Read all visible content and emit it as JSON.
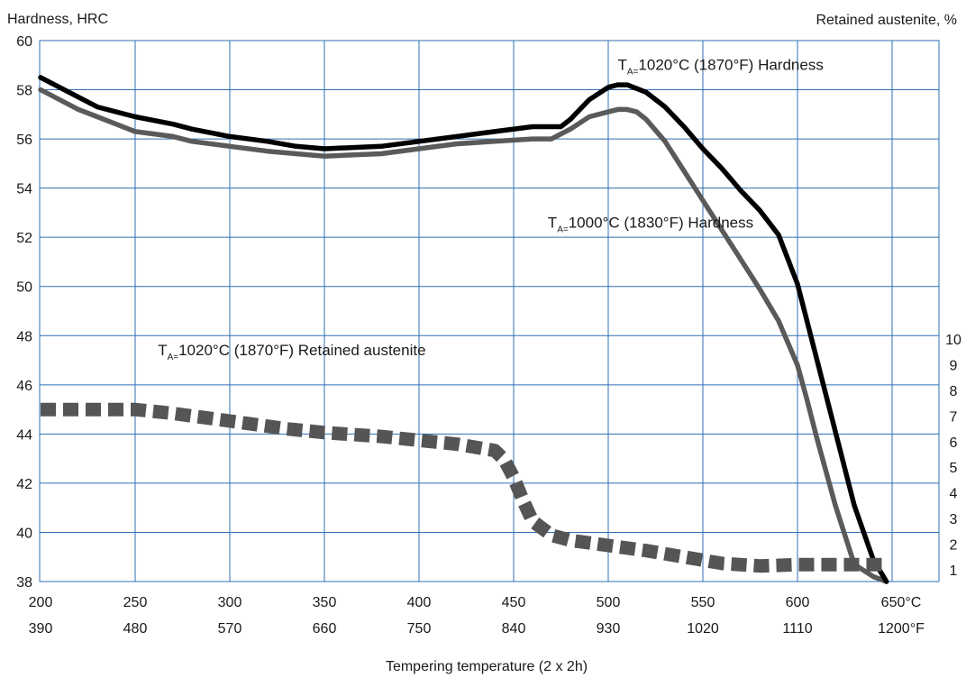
{
  "chart_data": {
    "type": "line",
    "left_axis_title": "Hardness, HRC",
    "right_axis_title": "Retained austenite,  %",
    "xlabel": "Tempering temperature  (2 x 2h)",
    "x_ticks_c": [
      200,
      250,
      300,
      350,
      400,
      450,
      500,
      550,
      600,
      650
    ],
    "x_tick_labels_c": [
      "200",
      "250",
      "300",
      "350",
      "400",
      "450",
      "500",
      "550",
      "600",
      "650°C"
    ],
    "x_tick_labels_f": [
      "390",
      "480",
      "570",
      "660",
      "750",
      "840",
      "930",
      "1020",
      "1110",
      "1200°F"
    ],
    "xlim": [
      200,
      650
    ],
    "y_left_ticks": [
      38,
      40,
      42,
      44,
      46,
      48,
      50,
      52,
      54,
      56,
      58,
      60
    ],
    "ylim_left": [
      38,
      60
    ],
    "y_right_ticks": [
      1,
      2,
      3,
      4,
      5,
      6,
      7,
      8,
      9,
      10
    ],
    "ylim_right": [
      1,
      10
    ],
    "grid": true,
    "series": [
      {
        "name_prefix": "T",
        "name_sub": "A=",
        "name": "1020°C (1870°F) Hardness",
        "axis": "left",
        "color": "#000000",
        "style": "solid",
        "x": [
          200,
          210,
          220,
          230,
          250,
          270,
          280,
          300,
          320,
          335,
          350,
          380,
          400,
          420,
          440,
          460,
          470,
          475,
          480,
          490,
          500,
          505,
          510,
          520,
          530,
          540,
          550,
          560,
          570,
          580,
          590,
          600,
          610,
          620,
          630,
          640,
          647
        ],
        "y": [
          58.5,
          58.1,
          57.7,
          57.3,
          56.9,
          56.6,
          56.4,
          56.1,
          55.9,
          55.7,
          55.6,
          55.7,
          55.9,
          56.1,
          56.3,
          56.5,
          56.5,
          56.5,
          56.8,
          57.6,
          58.1,
          58.2,
          58.2,
          57.9,
          57.3,
          56.5,
          55.6,
          54.8,
          53.9,
          53.1,
          52.1,
          50.1,
          47.1,
          44.1,
          41.1,
          38.9,
          38.0
        ]
      },
      {
        "name_prefix": "T",
        "name_sub": "A=",
        "name": "1000°C (1830°F) Hardness",
        "axis": "left",
        "color": "#5a5a5a",
        "style": "solid",
        "x": [
          200,
          210,
          220,
          230,
          250,
          270,
          280,
          300,
          320,
          335,
          350,
          380,
          400,
          420,
          440,
          460,
          470,
          475,
          480,
          490,
          500,
          505,
          510,
          515,
          520,
          530,
          540,
          550,
          560,
          570,
          580,
          590,
          600,
          605,
          610,
          620,
          630,
          640,
          647
        ],
        "y": [
          58.0,
          57.6,
          57.2,
          56.9,
          56.3,
          56.1,
          55.9,
          55.7,
          55.5,
          55.4,
          55.3,
          55.4,
          55.6,
          55.8,
          55.9,
          56.0,
          56.0,
          56.2,
          56.4,
          56.9,
          57.1,
          57.2,
          57.2,
          57.1,
          56.8,
          55.9,
          54.7,
          53.5,
          52.3,
          51.1,
          49.9,
          48.6,
          46.8,
          45.4,
          43.9,
          41.1,
          38.7,
          38.2,
          38.0
        ]
      },
      {
        "name_prefix": "T",
        "name_sub": "A=",
        "name": "1020°C (1870°F) Retained austenite",
        "axis": "right",
        "color": "#555555",
        "style": "dashed",
        "x": [
          200,
          230,
          250,
          270,
          300,
          330,
          350,
          380,
          400,
          420,
          440,
          445,
          450,
          455,
          460,
          470,
          480,
          500,
          520,
          540,
          560,
          580,
          600,
          620,
          640,
          647
        ],
        "y": [
          7.25,
          7.25,
          7.25,
          7.1,
          6.8,
          6.5,
          6.35,
          6.2,
          6.05,
          5.9,
          5.65,
          5.3,
          4.6,
          3.7,
          2.9,
          2.35,
          2.15,
          1.95,
          1.75,
          1.5,
          1.25,
          1.15,
          1.2,
          1.2,
          1.2,
          1.2
        ]
      }
    ],
    "annotations": [
      {
        "prefix": "T",
        "sub": "A=",
        "text": "1020°C (1870°F) Hardness",
        "x": 505,
        "y": 58.8
      },
      {
        "prefix": "T",
        "sub": "A=",
        "text": "1000°C (1830°F) Hardness",
        "x": 468,
        "y": 52.4
      },
      {
        "prefix": "T",
        "sub": "A=",
        "text": "1020°C (1870°F) Retained austenite",
        "x": 262,
        "y": 47.2
      }
    ]
  }
}
